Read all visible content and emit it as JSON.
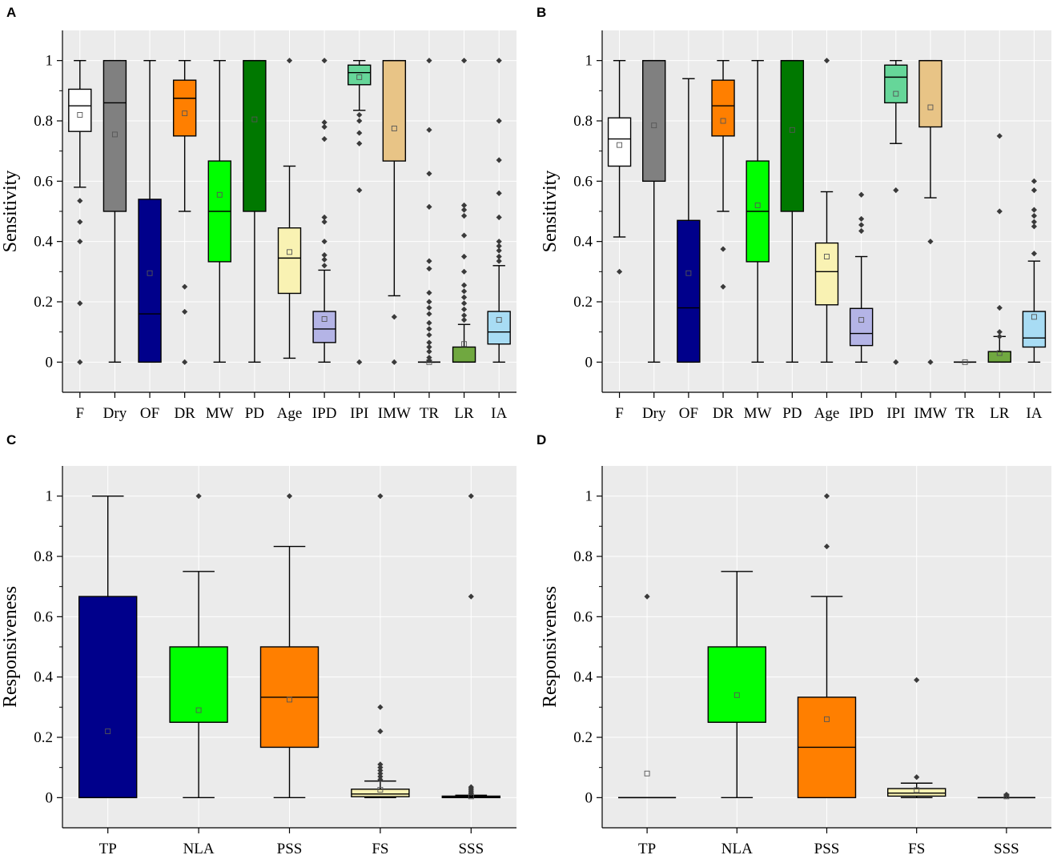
{
  "chart_data": [
    {
      "panel": "A",
      "type": "box",
      "ylabel": "Sensitivity",
      "ylim": [
        -0.1,
        1.1
      ],
      "yticks": [
        "0",
        "0.2",
        "0.4",
        "0.6",
        "0.8",
        "1"
      ],
      "grid": true,
      "categories": [
        "F",
        "Dry",
        "OF",
        "DR",
        "MW",
        "PD",
        "Age",
        "IPD",
        "IPI",
        "IMW",
        "TR",
        "LR",
        "IA"
      ],
      "boxes": [
        {
          "label": "F",
          "color": "#ffffff",
          "whisker_low": 0.58,
          "q1": 0.765,
          "median": 0.85,
          "q3": 0.905,
          "whisker_high": 1.0,
          "mean": 0.82,
          "outliers": [
            0.535,
            0.465,
            0.4,
            0.195,
            0.0
          ]
        },
        {
          "label": "Dry",
          "color": "#808080",
          "whisker_low": 0.0,
          "q1": 0.5,
          "median": 0.86,
          "q3": 1.0,
          "whisker_high": 1.0,
          "mean": 0.755,
          "outliers": []
        },
        {
          "label": "OF",
          "color": "#00008b",
          "whisker_low": 0.0,
          "q1": 0.0,
          "median": 0.16,
          "q3": 0.54,
          "whisker_high": 1.0,
          "mean": 0.295,
          "outliers": []
        },
        {
          "label": "DR",
          "color": "#ff7f00",
          "whisker_low": 0.5,
          "q1": 0.75,
          "median": 0.875,
          "q3": 0.935,
          "whisker_high": 1.0,
          "mean": 0.825,
          "outliers": [
            0.25,
            0.167,
            0.0
          ]
        },
        {
          "label": "MW",
          "color": "#00ff00",
          "whisker_low": 0.0,
          "q1": 0.333,
          "median": 0.5,
          "q3": 0.667,
          "whisker_high": 1.0,
          "mean": 0.555,
          "outliers": []
        },
        {
          "label": "PD",
          "color": "#007800",
          "whisker_low": 0.0,
          "q1": 0.5,
          "median": 1.0,
          "q3": 1.0,
          "whisker_high": 1.0,
          "mean": 0.805,
          "outliers": []
        },
        {
          "label": "Age",
          "color": "#f9f2b3",
          "whisker_low": 0.013,
          "q1": 0.228,
          "median": 0.345,
          "q3": 0.445,
          "whisker_high": 0.65,
          "mean": 0.365,
          "outliers": [
            1.0
          ]
        },
        {
          "label": "IPD",
          "color": "#b4b4e6",
          "whisker_low": 0.0,
          "q1": 0.065,
          "median": 0.11,
          "q3": 0.168,
          "whisker_high": 0.305,
          "mean": 0.143,
          "outliers": [
            1.0,
            0.795,
            0.78,
            0.74,
            0.48,
            0.465,
            0.4,
            0.355,
            0.34,
            0.32
          ]
        },
        {
          "label": "IPI",
          "color": "#66d699",
          "whisker_low": 0.835,
          "q1": 0.92,
          "median": 0.96,
          "q3": 0.985,
          "whisker_high": 1.0,
          "mean": 0.945,
          "outliers": [
            0.82,
            0.8,
            0.76,
            0.725,
            0.57,
            0.0
          ]
        },
        {
          "label": "IMW",
          "color": "#e8c486",
          "whisker_low": 0.22,
          "q1": 0.667,
          "median": 1.0,
          "q3": 1.0,
          "whisker_high": 1.0,
          "mean": 0.775,
          "outliers": [
            0.15,
            0.0
          ]
        },
        {
          "label": "TR",
          "color": "#e0e0e0",
          "whisker_low": 0.0,
          "q1": 0.0,
          "median": 0.0,
          "q3": 0.0,
          "whisker_high": 0.0,
          "mean": 0.0,
          "outliers": [
            1.0,
            0.77,
            0.625,
            0.515,
            0.335,
            0.31,
            0.23,
            0.2,
            0.18,
            0.16,
            0.13,
            0.11,
            0.09,
            0.065,
            0.05,
            0.035,
            0.015,
            0.005
          ]
        },
        {
          "label": "LR",
          "color": "#70a840",
          "whisker_low": 0.0,
          "q1": 0.0,
          "median": 0.0,
          "q3": 0.05,
          "whisker_high": 0.125,
          "mean": 0.06,
          "outliers": [
            1.0,
            0.52,
            0.505,
            0.485,
            0.42,
            0.35,
            0.3,
            0.255,
            0.235,
            0.215,
            0.195,
            0.175,
            0.155,
            0.14
          ]
        },
        {
          "label": "IA",
          "color": "#a8dcf4",
          "whisker_low": 0.0,
          "q1": 0.06,
          "median": 0.1,
          "q3": 0.168,
          "whisker_high": 0.32,
          "mean": 0.14,
          "outliers": [
            1.0,
            0.8,
            0.67,
            0.56,
            0.48,
            0.4,
            0.385,
            0.37,
            0.35,
            0.335
          ]
        }
      ]
    },
    {
      "panel": "B",
      "type": "box",
      "ylabel": "Sensitivity",
      "ylim": [
        -0.1,
        1.1
      ],
      "yticks": [
        "0",
        "0.2",
        "0.4",
        "0.6",
        "0.8",
        "1"
      ],
      "grid": true,
      "categories": [
        "F",
        "Dry",
        "OF",
        "DR",
        "MW",
        "PD",
        "Age",
        "IPD",
        "IPI",
        "IMW",
        "TR",
        "LR",
        "IA"
      ],
      "boxes": [
        {
          "label": "F",
          "color": "#ffffff",
          "whisker_low": 0.415,
          "q1": 0.65,
          "median": 0.74,
          "q3": 0.81,
          "whisker_high": 1.0,
          "mean": 0.72,
          "outliers": [
            0.3
          ]
        },
        {
          "label": "Dry",
          "color": "#808080",
          "whisker_low": 0.0,
          "q1": 0.6,
          "median": 1.0,
          "q3": 1.0,
          "whisker_high": 1.0,
          "mean": 0.785,
          "outliers": []
        },
        {
          "label": "OF",
          "color": "#00008b",
          "whisker_low": 0.0,
          "q1": 0.0,
          "median": 0.18,
          "q3": 0.47,
          "whisker_high": 0.94,
          "mean": 0.295,
          "outliers": []
        },
        {
          "label": "DR",
          "color": "#ff7f00",
          "whisker_low": 0.5,
          "q1": 0.75,
          "median": 0.85,
          "q3": 0.935,
          "whisker_high": 1.0,
          "mean": 0.8,
          "outliers": [
            0.375,
            0.25
          ]
        },
        {
          "label": "MW",
          "color": "#00ff00",
          "whisker_low": 0.0,
          "q1": 0.333,
          "median": 0.5,
          "q3": 0.667,
          "whisker_high": 1.0,
          "mean": 0.52,
          "outliers": []
        },
        {
          "label": "PD",
          "color": "#007800",
          "whisker_low": 0.0,
          "q1": 0.5,
          "median": 1.0,
          "q3": 1.0,
          "whisker_high": 1.0,
          "mean": 0.77,
          "outliers": []
        },
        {
          "label": "Age",
          "color": "#f9f2b3",
          "whisker_low": 0.0,
          "q1": 0.19,
          "median": 0.3,
          "q3": 0.395,
          "whisker_high": 0.565,
          "mean": 0.35,
          "outliers": [
            1.0
          ]
        },
        {
          "label": "IPD",
          "color": "#b4b4e6",
          "whisker_low": 0.0,
          "q1": 0.055,
          "median": 0.095,
          "q3": 0.178,
          "whisker_high": 0.35,
          "mean": 0.14,
          "outliers": [
            0.555,
            0.475,
            0.455,
            0.435
          ]
        },
        {
          "label": "IPI",
          "color": "#66d699",
          "whisker_low": 0.725,
          "q1": 0.86,
          "median": 0.945,
          "q3": 0.985,
          "whisker_high": 1.0,
          "mean": 0.89,
          "outliers": [
            0.57,
            0.0
          ]
        },
        {
          "label": "IMW",
          "color": "#e8c486",
          "whisker_low": 0.545,
          "q1": 0.78,
          "median": 1.0,
          "q3": 1.0,
          "whisker_high": 1.0,
          "mean": 0.845,
          "outliers": [
            0.4,
            0.0
          ]
        },
        {
          "label": "TR",
          "color": "#e0e0e0",
          "whisker_low": 0.0,
          "q1": 0.0,
          "median": 0.0,
          "q3": 0.0,
          "whisker_high": 0.0,
          "mean": 0.0,
          "outliers": []
        },
        {
          "label": "LR",
          "color": "#70a840",
          "whisker_low": 0.0,
          "q1": 0.0,
          "median": 0.0,
          "q3": 0.035,
          "whisker_high": 0.085,
          "mean": 0.03,
          "outliers": [
            0.75,
            0.5,
            0.18,
            0.1,
            0.085
          ]
        },
        {
          "label": "IA",
          "color": "#a8dcf4",
          "whisker_low": 0.0,
          "q1": 0.05,
          "median": 0.08,
          "q3": 0.168,
          "whisker_high": 0.335,
          "mean": 0.15,
          "outliers": [
            0.6,
            0.57,
            0.505,
            0.485,
            0.465,
            0.45,
            0.36
          ]
        }
      ]
    },
    {
      "panel": "C",
      "type": "box",
      "ylabel": "Responsiveness",
      "ylim": [
        -0.1,
        1.1
      ],
      "yticks": [
        "0",
        "0.2",
        "0.4",
        "0.6",
        "0.8",
        "1"
      ],
      "grid": true,
      "categories": [
        "TP",
        "NLA",
        "PSS",
        "FS",
        "SSS"
      ],
      "boxes": [
        {
          "label": "TP",
          "color": "#00008b",
          "whisker_low": 0.0,
          "q1": 0.0,
          "median": 0.0,
          "q3": 0.667,
          "whisker_high": 1.0,
          "mean": 0.22,
          "outliers": []
        },
        {
          "label": "NLA",
          "color": "#00ff00",
          "whisker_low": 0.0,
          "q1": 0.25,
          "median": 0.25,
          "q3": 0.5,
          "whisker_high": 0.75,
          "mean": 0.29,
          "outliers": [
            1.0
          ]
        },
        {
          "label": "PSS",
          "color": "#ff7f00",
          "whisker_low": 0.0,
          "q1": 0.167,
          "median": 0.333,
          "q3": 0.5,
          "whisker_high": 0.833,
          "mean": 0.325,
          "outliers": [
            1.0
          ]
        },
        {
          "label": "FS",
          "color": "#f9f2b3",
          "whisker_low": 0.0,
          "q1": 0.003,
          "median": 0.012,
          "q3": 0.028,
          "whisker_high": 0.055,
          "mean": 0.026,
          "outliers": [
            1.0,
            0.3,
            0.22,
            0.11,
            0.1,
            0.09,
            0.08,
            0.07,
            0.06
          ]
        },
        {
          "label": "SSS",
          "color": "#f9f2b3",
          "whisker_low": 0.0,
          "q1": 0.0,
          "median": 0.002,
          "q3": 0.005,
          "whisker_high": 0.008,
          "mean": 0.004,
          "outliers": [
            1.0,
            0.667,
            0.035,
            0.03,
            0.025,
            0.02,
            0.015
          ]
        }
      ]
    },
    {
      "panel": "D",
      "type": "box",
      "ylabel": "Responsiveness",
      "ylim": [
        -0.1,
        1.1
      ],
      "yticks": [
        "0",
        "0.2",
        "0.4",
        "0.6",
        "0.8",
        "1"
      ],
      "grid": true,
      "categories": [
        "TP",
        "NLA",
        "PSS",
        "FS",
        "SSS"
      ],
      "boxes": [
        {
          "label": "TP",
          "color": "#00008b",
          "whisker_low": 0.0,
          "q1": 0.0,
          "median": 0.0,
          "q3": 0.0,
          "whisker_high": 0.0,
          "mean": 0.08,
          "outliers": [
            0.667
          ]
        },
        {
          "label": "NLA",
          "color": "#00ff00",
          "whisker_low": 0.0,
          "q1": 0.25,
          "median": 0.25,
          "q3": 0.5,
          "whisker_high": 0.75,
          "mean": 0.34,
          "outliers": []
        },
        {
          "label": "PSS",
          "color": "#ff7f00",
          "whisker_low": 0.0,
          "q1": 0.0,
          "median": 0.167,
          "q3": 0.333,
          "whisker_high": 0.667,
          "mean": 0.26,
          "outliers": [
            1.0,
            0.833
          ]
        },
        {
          "label": "FS",
          "color": "#f9f2b3",
          "whisker_low": 0.0,
          "q1": 0.005,
          "median": 0.015,
          "q3": 0.03,
          "whisker_high": 0.048,
          "mean": 0.025,
          "outliers": [
            0.39,
            0.068
          ]
        },
        {
          "label": "SSS",
          "color": "#f9f2b3",
          "whisker_low": 0.0,
          "q1": 0.0,
          "median": 0.0,
          "q3": 0.0,
          "whisker_high": 0.0,
          "mean": 0.004,
          "outliers": [
            0.01,
            0.006
          ]
        }
      ]
    }
  ],
  "panels": {
    "a": {
      "letter": "A"
    },
    "b": {
      "letter": "B"
    },
    "c": {
      "letter": "C"
    },
    "d": {
      "letter": "D"
    }
  },
  "colors": {
    "plot_bg": "#ebebeb",
    "grid": "#ffffff",
    "outlier": "#3a3a3a",
    "mean_marker": "#555555"
  }
}
